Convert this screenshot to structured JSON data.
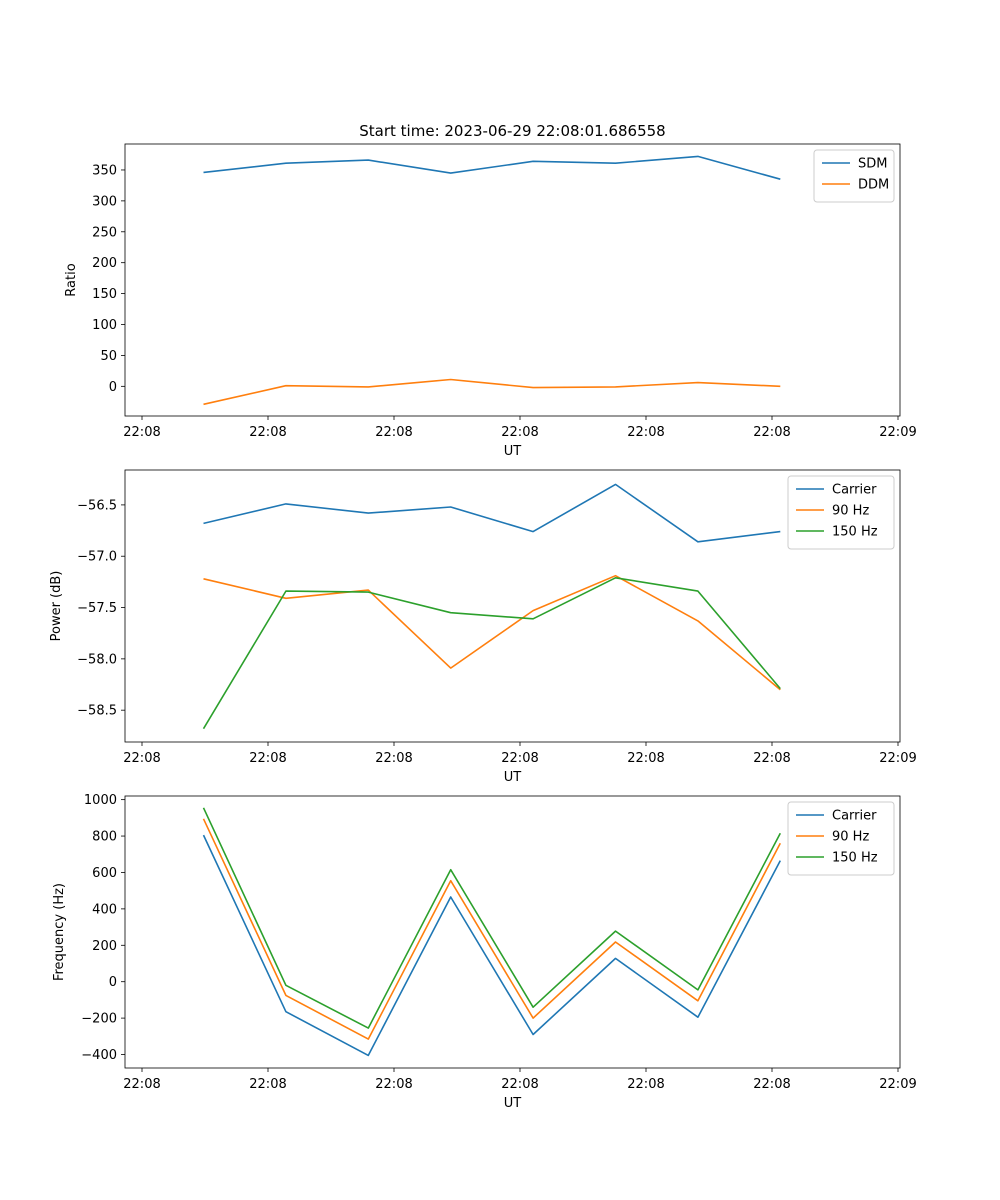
{
  "title": "Start time: 2023-06-29 22:08:01.686558",
  "colors": {
    "blue": "#1f77b4",
    "orange": "#ff7f0e",
    "green": "#2ca02c"
  },
  "chart_data": [
    {
      "type": "line",
      "title": "Start time: 2023-06-29 22:08:01.686558",
      "xlabel": "UT",
      "ylabel": "Ratio",
      "xticks": [
        "22:08",
        "22:08",
        "22:08",
        "22:08",
        "22:08",
        "22:08",
        "22:09"
      ],
      "yticks": [
        0,
        50,
        100,
        150,
        200,
        250,
        300,
        350
      ],
      "ylim": [
        -48,
        392
      ],
      "legend": "top-right",
      "grid": false,
      "series": [
        {
          "name": "SDM",
          "color": "#1f77b4",
          "values": [
            346,
            361,
            366,
            345,
            364,
            361,
            372,
            335
          ]
        },
        {
          "name": "DDM",
          "color": "#ff7f0e",
          "values": [
            -29,
            1,
            -1,
            11,
            -2,
            -1,
            6,
            0
          ]
        }
      ]
    },
    {
      "type": "line",
      "title": "",
      "xlabel": "UT",
      "ylabel": "Power (dB)",
      "xticks": [
        "22:08",
        "22:08",
        "22:08",
        "22:08",
        "22:08",
        "22:08",
        "22:09"
      ],
      "yticks": [
        -56.5,
        -57.0,
        -57.5,
        -58.0,
        -58.5
      ],
      "ytick_labels": [
        "−56.5",
        "−57.0",
        "−57.5",
        "−58.0",
        "−58.5"
      ],
      "ylim": [
        -58.81,
        -56.16
      ],
      "legend": "top-right",
      "grid": false,
      "series": [
        {
          "name": "Carrier",
          "color": "#1f77b4",
          "values": [
            -56.68,
            -56.49,
            -56.58,
            -56.52,
            -56.76,
            -56.3,
            -56.86,
            -56.76
          ]
        },
        {
          "name": "90 Hz",
          "color": "#ff7f0e",
          "values": [
            -57.22,
            -57.41,
            -57.33,
            -58.09,
            -57.53,
            -57.19,
            -57.63,
            -58.3
          ]
        },
        {
          "name": "150 Hz",
          "color": "#2ca02c",
          "values": [
            -58.68,
            -57.34,
            -57.35,
            -57.55,
            -57.61,
            -57.21,
            -57.34,
            -58.29
          ]
        }
      ]
    },
    {
      "type": "line",
      "title": "",
      "xlabel": "UT",
      "ylabel": "Frequency (Hz)",
      "xticks": [
        "22:08",
        "22:08",
        "22:08",
        "22:08",
        "22:08",
        "22:08",
        "22:09"
      ],
      "yticks": [
        -400,
        -200,
        0,
        200,
        400,
        600,
        800,
        1000
      ],
      "ytick_labels": [
        "−400",
        "−200",
        "0",
        "200",
        "400",
        "600",
        "800",
        "1000"
      ],
      "ylim": [
        -474,
        1020
      ],
      "legend": "top-right",
      "grid": false,
      "series": [
        {
          "name": "Carrier",
          "color": "#1f77b4",
          "values": [
            805,
            -165,
            -405,
            465,
            -290,
            128,
            -195,
            665
          ]
        },
        {
          "name": "90 Hz",
          "color": "#ff7f0e",
          "values": [
            895,
            -75,
            -315,
            555,
            -200,
            218,
            -105,
            760
          ]
        },
        {
          "name": "150 Hz",
          "color": "#2ca02c",
          "values": [
            955,
            -20,
            -255,
            615,
            -140,
            278,
            -45,
            815
          ]
        }
      ]
    }
  ]
}
